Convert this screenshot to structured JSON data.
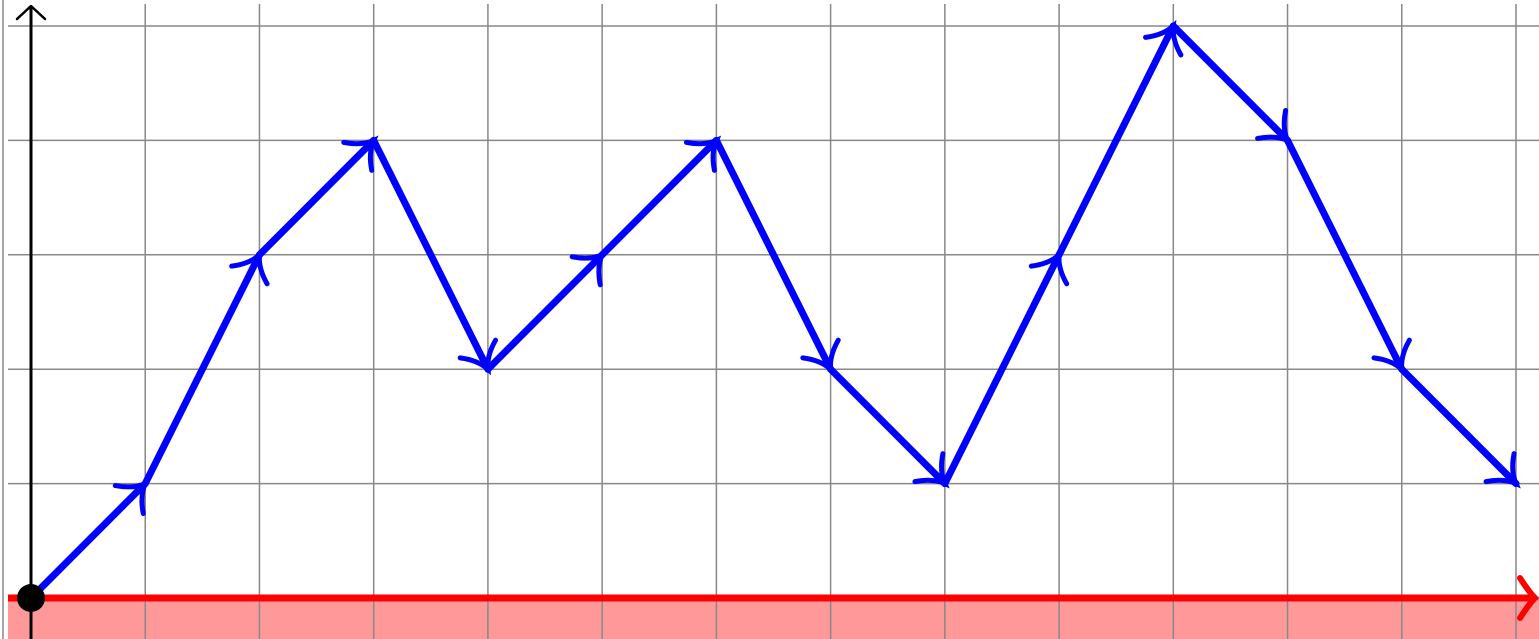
{
  "chart_data": {
    "type": "line",
    "title": "",
    "xlabel": "",
    "ylabel": "",
    "xlim": [
      -0.2,
      13.3
    ],
    "ylim": [
      -0.35,
      5.15
    ],
    "grid": true,
    "x": [
      0,
      1,
      2,
      3,
      4,
      5,
      6,
      7,
      8,
      9,
      10,
      11,
      12,
      13
    ],
    "series": [
      {
        "values": [
          0,
          1,
          3,
          4,
          2,
          3,
          4,
          2,
          1,
          3,
          5,
          4,
          2,
          1
        ]
      }
    ],
    "start_point": {
      "x": 0,
      "y": 0
    },
    "baseline": 0,
    "colors": {
      "path": "#0000ff",
      "baseline": "#ff0000",
      "below_region": "#ff9999",
      "grid": "#888888",
      "axis": "#000000",
      "start_point": "#000000"
    }
  }
}
